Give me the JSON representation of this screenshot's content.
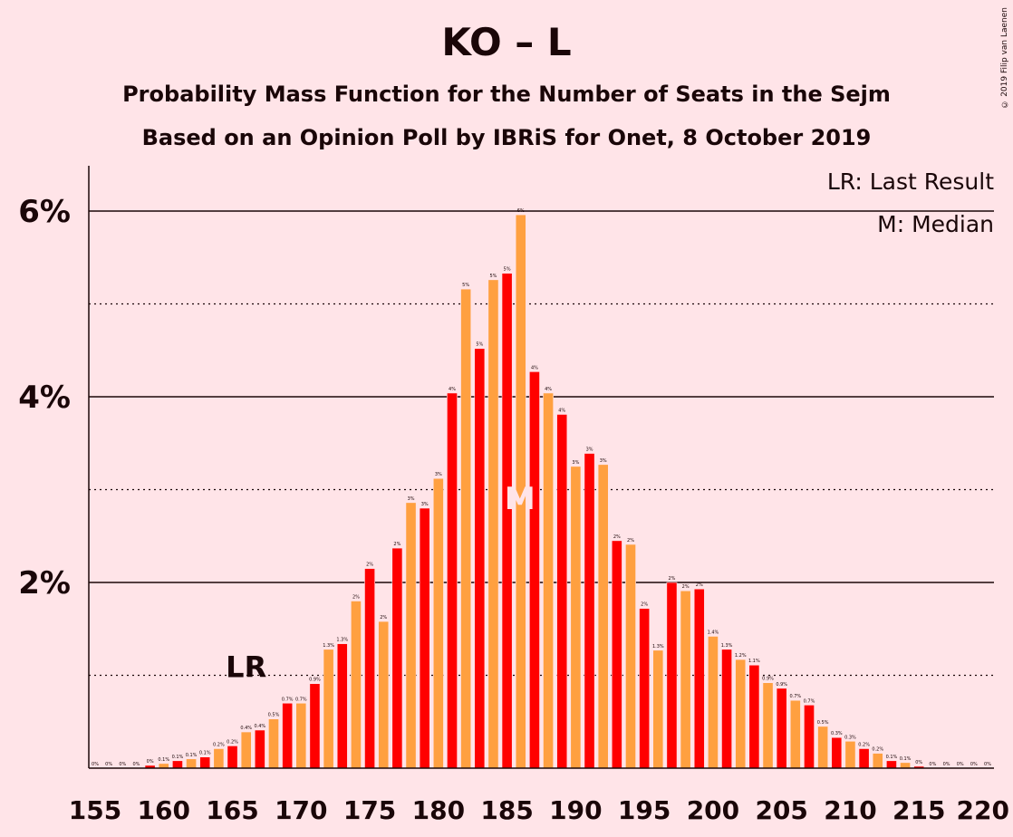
{
  "title": "KO – L",
  "subtitle_1": "Probability Mass Function for the Number of Seats in the Sejm",
  "subtitle_2": "Based on an Opinion Poll by IBRiS for Onet, 8 October 2019",
  "copyright": "© 2019 Filip van Laenen",
  "legend": {
    "last_result": "LR: Last Result",
    "median": "M: Median"
  },
  "markers": {
    "last_result_label": "LR",
    "median_label": "M"
  },
  "colors": {
    "red": "#FF0000",
    "orange": "#FFA040",
    "background": "#FFE4E8",
    "median_text": "#FFE4E8"
  },
  "chart_data": {
    "type": "bar",
    "x": [
      155,
      156,
      157,
      158,
      159,
      160,
      161,
      162,
      163,
      164,
      165,
      166,
      167,
      168,
      169,
      170,
      171,
      172,
      173,
      174,
      175,
      176,
      177,
      178,
      179,
      180,
      181,
      182,
      183,
      184,
      185,
      186,
      187,
      188,
      189,
      190,
      191,
      192,
      193,
      194,
      195,
      196,
      197,
      198,
      199,
      200,
      201,
      202,
      203,
      204,
      205,
      206,
      207,
      208,
      209,
      210,
      211,
      212,
      213,
      214,
      215,
      216,
      217,
      218,
      219,
      220
    ],
    "values": [
      0,
      0,
      0,
      0,
      0.03,
      0.05,
      0.08,
      0.1,
      0.12,
      0.21,
      0.24,
      0.39,
      0.41,
      0.53,
      0.7,
      0.7,
      0.91,
      1.28,
      1.34,
      1.8,
      2.15,
      1.58,
      2.37,
      2.86,
      2.8,
      3.12,
      4.04,
      5.16,
      4.52,
      5.26,
      5.33,
      5.96,
      4.27,
      4.04,
      3.81,
      3.25,
      3.39,
      3.27,
      2.45,
      2.41,
      1.72,
      1.27,
      2.0,
      1.91,
      1.93,
      1.42,
      1.28,
      1.17,
      1.11,
      0.92,
      0.86,
      0.73,
      0.68,
      0.45,
      0.33,
      0.29,
      0.21,
      0.16,
      0.08,
      0.06,
      0.02,
      0,
      0,
      0,
      0,
      0
    ],
    "bar_labels": [
      "0%",
      "0%",
      "0%",
      "0%",
      "0%",
      "0.1%",
      "0.1%",
      "0.1%",
      "0.1%",
      "0.2%",
      "0.2%",
      "0.4%",
      "0.4%",
      "0.5%",
      "0.7%",
      "0.7%",
      "0.9%",
      "1.3%",
      "1.3%",
      "2%",
      "2%",
      "2%",
      "2%",
      "3%",
      "3%",
      "3%",
      "4%",
      "5%",
      "5%",
      "5%",
      "5%",
      "6%",
      "4%",
      "4%",
      "4%",
      "3%",
      "3%",
      "3%",
      "2%",
      "2%",
      "2%",
      "1.3%",
      "2%",
      "2%",
      "2%",
      "1.4%",
      "1.3%",
      "1.2%",
      "1.1%",
      "0.9%",
      "0.9%",
      "0.7%",
      "0.7%",
      "0.5%",
      "0.3%",
      "0.3%",
      "0.2%",
      "0.2%",
      "0.1%",
      "0.1%",
      "0%",
      "0%",
      "0%",
      "0%",
      "0%",
      "0%"
    ],
    "x_ticks": [
      155,
      160,
      165,
      170,
      175,
      180,
      185,
      190,
      195,
      200,
      205,
      210,
      215,
      220
    ],
    "y_ticks": [
      {
        "value": 2,
        "label": "2%"
      },
      {
        "value": 4,
        "label": "4%"
      },
      {
        "value": 6,
        "label": "6%"
      }
    ],
    "ylim": [
      0,
      6.5
    ],
    "last_result": 166,
    "median": 186,
    "grid": "solid at labelled ticks, dotted at odd percentages"
  }
}
